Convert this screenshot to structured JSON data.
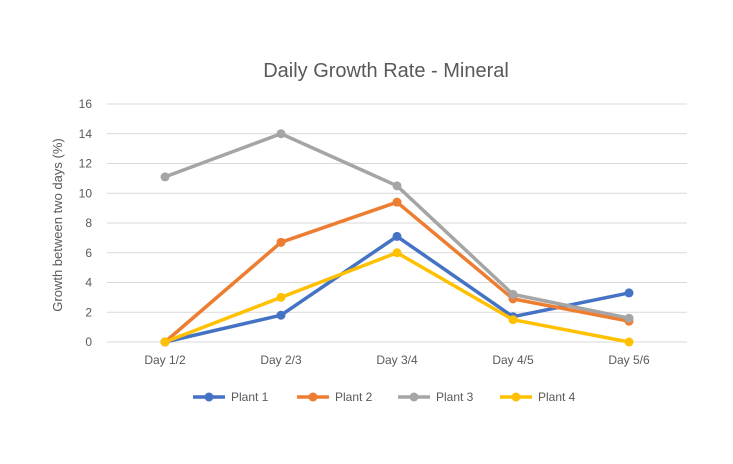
{
  "chart_data": {
    "type": "line",
    "title": "Daily Growth Rate - Mineral",
    "xlabel": "",
    "ylabel": "Growth between two days (%)",
    "categories": [
      "Day 1/2",
      "Day 2/3",
      "Day 3/4",
      "Day 4/5",
      "Day 5/6"
    ],
    "ylim": [
      0,
      16
    ],
    "yticks": [
      0,
      2,
      4,
      6,
      8,
      10,
      12,
      14,
      16
    ],
    "grid": true,
    "legend_position": "bottom",
    "series": [
      {
        "name": "Plant 1",
        "color": "#4472c4",
        "values": [
          0.0,
          1.8,
          7.1,
          1.7,
          3.3
        ]
      },
      {
        "name": "Plant 2",
        "color": "#ed7d31",
        "values": [
          0.0,
          6.7,
          9.4,
          2.9,
          1.4
        ]
      },
      {
        "name": "Plant 3",
        "color": "#a5a5a5",
        "values": [
          11.1,
          14.0,
          10.5,
          3.2,
          1.6
        ]
      },
      {
        "name": "Plant 4",
        "color": "#ffc000",
        "values": [
          0.0,
          3.0,
          6.0,
          1.5,
          0.0
        ]
      }
    ]
  }
}
